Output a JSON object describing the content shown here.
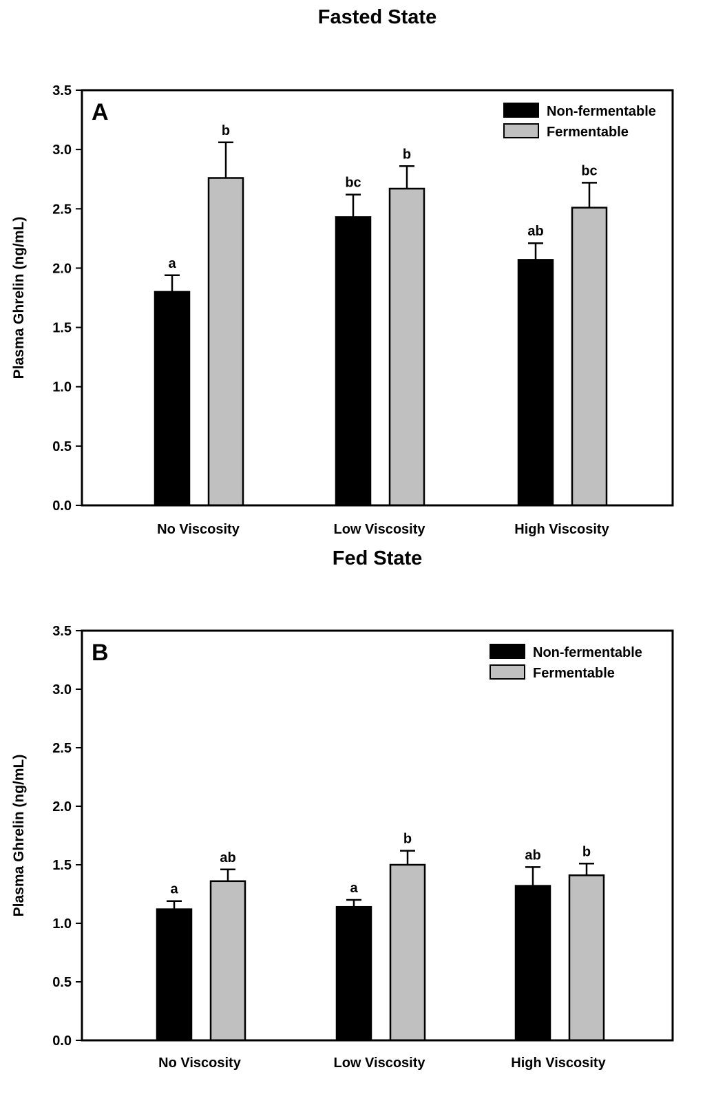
{
  "chart_data": [
    {
      "type": "bar",
      "title": "Fasted State",
      "panel_label": "A",
      "xlabel": "",
      "ylabel": "Plasma Ghrelin (ng/mL)",
      "ylim": [
        0,
        3.5
      ],
      "yticks": [
        "0.0",
        "0.5",
        "1.0",
        "1.5",
        "2.0",
        "2.5",
        "3.0",
        "3.5"
      ],
      "grid": false,
      "legend_position": "top-right",
      "categories": [
        "No Viscosity",
        "Low Viscosity",
        "High Viscosity"
      ],
      "series": [
        {
          "name": "Non-fermentable",
          "color": "#000000",
          "values": [
            1.8,
            2.43,
            2.07
          ],
          "errors": [
            0.14,
            0.19,
            0.14
          ],
          "labels": [
            "a",
            "bc",
            "ab"
          ]
        },
        {
          "name": "Fermentable",
          "color": "#c0c0c0",
          "values": [
            2.76,
            2.67,
            2.51
          ],
          "errors": [
            0.3,
            0.19,
            0.21
          ],
          "labels": [
            "b",
            "b",
            "bc"
          ]
        }
      ]
    },
    {
      "type": "bar",
      "title": "Fed State",
      "panel_label": "B",
      "xlabel": "",
      "ylabel": "Plasma Ghrelin (ng/mL)",
      "ylim": [
        0,
        3.5
      ],
      "yticks": [
        "0.0",
        "0.5",
        "1.0",
        "1.5",
        "2.0",
        "2.5",
        "3.0",
        "3.5"
      ],
      "grid": false,
      "legend_position": "top-right",
      "categories": [
        "No Viscosity",
        "Low Viscosity",
        "High Viscosity"
      ],
      "series": [
        {
          "name": "Non-fermentable",
          "color": "#000000",
          "values": [
            1.12,
            1.14,
            1.32
          ],
          "errors": [
            0.07,
            0.06,
            0.16
          ],
          "labels": [
            "a",
            "a",
            "ab"
          ]
        },
        {
          "name": "Fermentable",
          "color": "#c0c0c0",
          "values": [
            1.36,
            1.5,
            1.41
          ],
          "errors": [
            0.1,
            0.12,
            0.1
          ],
          "labels": [
            "ab",
            "b",
            "b"
          ]
        }
      ]
    }
  ]
}
